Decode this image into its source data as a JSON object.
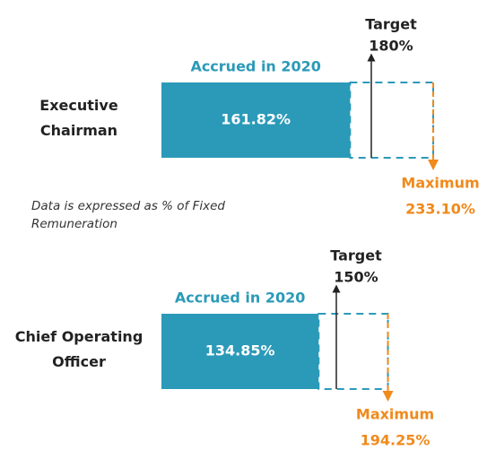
{
  "note": "Data is expressed as % of Fixed Remuneration",
  "chart_data": [
    {
      "type": "bar",
      "categories": [
        "Executive Chairman"
      ],
      "series": [
        {
          "name": "Accrued in 2020",
          "color": "#2b9ab8",
          "values": [
            161.82
          ],
          "value_labels": [
            "161.82%"
          ]
        }
      ],
      "target": {
        "name": "Target",
        "value": 180,
        "value_label": "180%",
        "color": "#222222"
      },
      "maximum": {
        "name": "Maximum",
        "value": 233.1,
        "value_label": "233.10%",
        "color": "#f08a1c"
      }
    },
    {
      "type": "bar",
      "categories": [
        "Chief Operating Officer"
      ],
      "series": [
        {
          "name": "Accrued in 2020",
          "color": "#2b9ab8",
          "values": [
            134.85
          ],
          "value_labels": [
            "134.85%"
          ]
        }
      ],
      "target": {
        "name": "Target",
        "value": 150,
        "value_label": "150%",
        "color": "#222222"
      },
      "maximum": {
        "name": "Maximum",
        "value": 194.25,
        "value_label": "194.25%",
        "color": "#f08a1c"
      }
    }
  ]
}
